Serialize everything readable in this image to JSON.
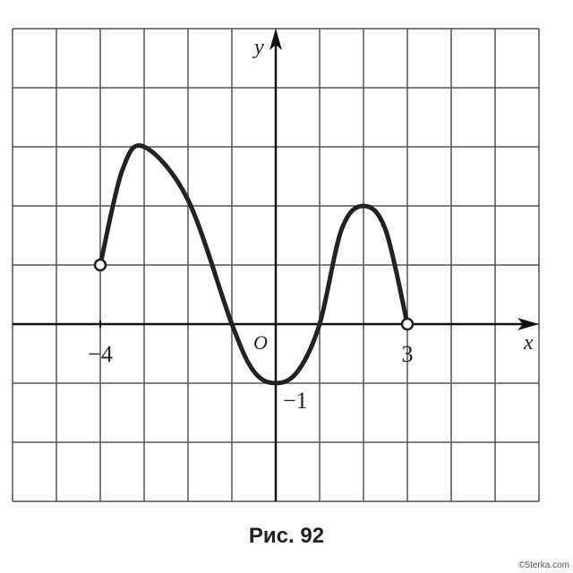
{
  "chart_data": {
    "type": "line",
    "title": "Рис. 92",
    "watermark": "©5terka.com",
    "x_label": "x",
    "y_label": "y",
    "origin_label": "O",
    "x": [
      -4,
      -3.5,
      -3,
      -2,
      -1,
      -0.5,
      0,
      0.5,
      1,
      1.5,
      2,
      2.5,
      3
    ],
    "values": [
      1,
      2.6,
      3,
      2.1,
      0,
      -0.8,
      -1,
      -0.8,
      0,
      1.6,
      2,
      1.6,
      0
    ],
    "color": "#222222",
    "xlim": [
      -6,
      6
    ],
    "ylim": [
      -3,
      5
    ],
    "xticks": [
      {
        "value": -4,
        "label": "−4"
      },
      3
    ],
    "yticks": [
      {
        "value": -1,
        "label": "−1"
      }
    ],
    "grid": true
  }
}
